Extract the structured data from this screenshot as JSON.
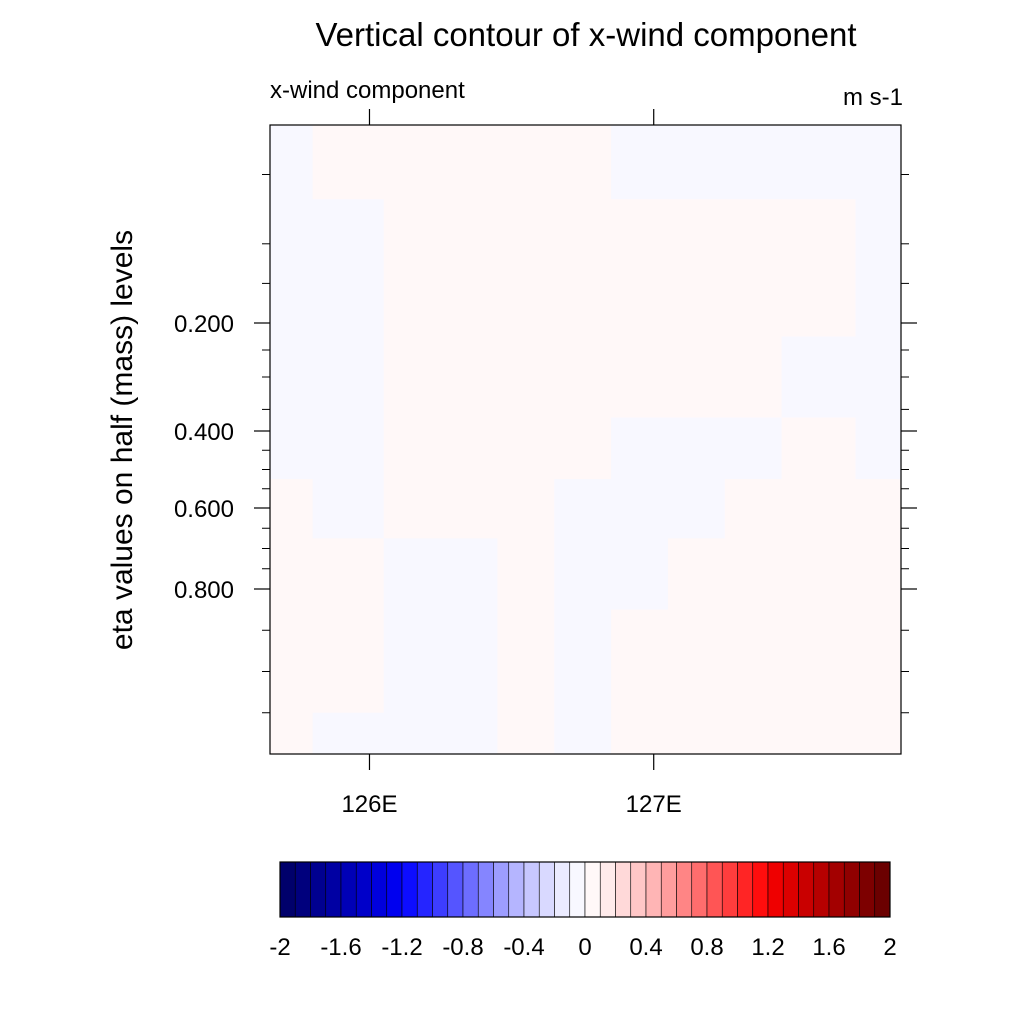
{
  "chart_data": {
    "type": "heatmap",
    "title": "Vertical contour of x-wind component",
    "left_string": "x-wind component",
    "right_string": "m s-1",
    "ylabel": "eta values on half (mass) levels",
    "x_ticks": [
      {
        "value": 126,
        "label": "126E"
      },
      {
        "value": 127,
        "label": "127E"
      }
    ],
    "xlim": [
      125.65,
      127.87
    ],
    "y_ticks": [
      {
        "value": 0.2,
        "label": "0.200"
      },
      {
        "value": 0.4,
        "label": "0.400"
      },
      {
        "value": 0.6,
        "label": "0.600"
      },
      {
        "value": 0.8,
        "label": "0.800"
      }
    ],
    "y_minor_ticks": [
      0.05,
      0.12,
      0.16,
      0.25,
      0.3,
      0.36,
      0.45,
      0.5,
      0.55,
      0.65,
      0.7,
      0.75,
      0.85,
      0.9,
      0.95
    ],
    "y_axis": "eta half levels, increasing downward",
    "colorbar": {
      "levels": [
        -2,
        -1.9,
        -1.8,
        -1.7,
        -1.6,
        -1.5,
        -1.4,
        -1.3,
        -1.2,
        -1.1,
        -1,
        -0.9,
        -0.8,
        -0.7,
        -0.6,
        -0.5,
        -0.4,
        -0.3,
        -0.2,
        -0.1,
        0,
        0.1,
        0.2,
        0.3,
        0.4,
        0.5,
        0.6,
        0.7,
        0.8,
        0.9,
        1,
        1.1,
        1.2,
        1.3,
        1.4,
        1.5,
        1.6,
        1.7,
        1.8,
        1.9,
        2
      ],
      "label_values": [
        -2,
        -1.6,
        -1.2,
        -0.8,
        -0.4,
        0,
        0.4,
        0.8,
        1.2,
        1.6,
        2
      ],
      "labels": [
        "-2",
        "-1.6",
        "-1.2",
        "-0.8",
        "-0.4",
        "0",
        "0.4",
        "0.8",
        "1.2",
        "1.6",
        "2"
      ],
      "colors": [
        "#00006b",
        "#00007d",
        "#000090",
        "#0000a3",
        "#0000b6",
        "#0000c9",
        "#0000dc",
        "#0000ef",
        "#0d0dff",
        "#2525ff",
        "#3d3dff",
        "#5555ff",
        "#6d6dff",
        "#8585ff",
        "#9d9dff",
        "#b5b5ff",
        "#c7c7ff",
        "#d9d9ff",
        "#ebebff",
        "#f8f8ff",
        "#fff8f8",
        "#ffebeb",
        "#ffd9d9",
        "#ffc7c7",
        "#ffb5b5",
        "#ff9d9d",
        "#ff8585",
        "#ff6d6d",
        "#ff5555",
        "#ff3d3d",
        "#ff2525",
        "#ff0d0d",
        "#ef0000",
        "#dc0000",
        "#c90000",
        "#b60000",
        "#a30000",
        "#900000",
        "#7d0000",
        "#6b0000"
      ]
    },
    "field": {
      "x": [
        125.65,
        125.95,
        126.15,
        126.35,
        126.55,
        126.75,
        126.95,
        127.15,
        127.35,
        127.55,
        127.87
      ],
      "y": [
        0.0,
        0.15,
        0.3,
        0.45,
        0.6,
        0.75,
        0.9,
        1.0
      ],
      "u": [
        [
          -0.05,
          0.02,
          0.03,
          0.02,
          0.02,
          0.01,
          -0.03,
          -0.04,
          -0.05,
          -0.03,
          -0.04
        ],
        [
          -0.04,
          -0.02,
          0.03,
          0.03,
          0.03,
          0.02,
          0.02,
          0.02,
          0.01,
          0.02,
          -0.04
        ],
        [
          -0.04,
          -0.03,
          0.03,
          0.04,
          0.03,
          0.02,
          0.02,
          0.03,
          0.02,
          -0.02,
          -0.03
        ],
        [
          -0.03,
          -0.02,
          0.02,
          0.02,
          0.03,
          0.02,
          -0.03,
          -0.02,
          -0.02,
          0.01,
          -0.02
        ],
        [
          0.02,
          -0.03,
          0.02,
          0.02,
          0.03,
          -0.03,
          -0.04,
          -0.03,
          0.02,
          0.02,
          0.01
        ],
        [
          0.02,
          0.02,
          -0.03,
          -0.03,
          0.02,
          -0.03,
          -0.03,
          0.02,
          0.02,
          0.02,
          0.02
        ],
        [
          0.02,
          0.02,
          -0.03,
          -0.03,
          0.02,
          -0.02,
          0.02,
          0.02,
          0.02,
          0.02,
          0.02
        ],
        [
          0.02,
          -0.02,
          -0.02,
          -0.03,
          0.02,
          -0.02,
          0.02,
          0.02,
          0.02,
          0.02,
          0.02
        ]
      ]
    }
  }
}
